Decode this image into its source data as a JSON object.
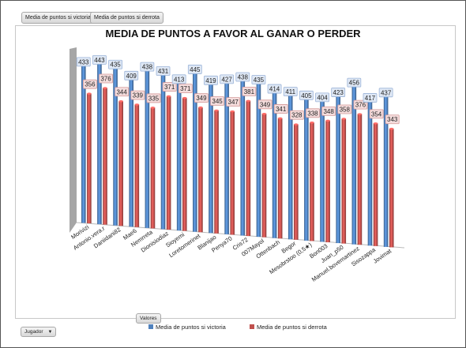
{
  "pivot_buttons": {
    "victoria": "Media de puntos si victoria",
    "derrota": "Media de puntos si derrota",
    "valores": "Valores",
    "jugador": "Jugador"
  },
  "chart_data": {
    "type": "bar",
    "title": "MEDIA DE PUNTOS A FAVOR AL GANAR O PERDER",
    "categories": [
      "Morivizi",
      "Antonio.vera.r",
      "Daniidani82",
      "Mae6",
      "Nemrreta",
      "Dionisiodiaz",
      "Sioyemi",
      "Loretomerinet",
      "Blanijao",
      "Penya70",
      "Cris72",
      "007Mayol",
      "Ottenbach",
      "Begor",
      "Mesobrstoo (0,5★)",
      "Bon003",
      "Juan_p50",
      "Manuel.bovemartinez",
      "Sisozappa",
      "Jovimat"
    ],
    "series": [
      {
        "name": "Media de puntos si victoria",
        "color": "#4f81bd",
        "values": [
          433,
          443,
          435,
          409,
          438,
          431,
          413,
          445,
          419,
          427,
          438,
          435,
          414,
          411,
          405,
          404,
          423,
          456,
          417,
          437
        ]
      },
      {
        "name": "Media de puntos si derrota",
        "color": "#c0504d",
        "values": [
          356,
          376,
          344,
          339,
          335,
          371,
          371,
          349,
          345,
          347,
          381,
          349,
          341,
          328,
          338,
          348,
          358,
          376,
          354,
          343
        ]
      }
    ],
    "legend": "bottom"
  }
}
